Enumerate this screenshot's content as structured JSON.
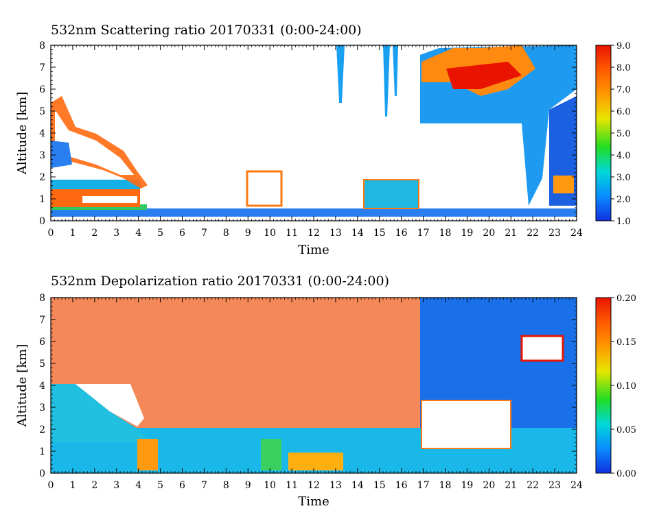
{
  "chart_data": [
    {
      "type": "heatmap",
      "title": "532nm Scattering ratio  20170331 (0:00-24:00)",
      "xlabel": "Time",
      "ylabel": "Altitude [km]",
      "xlim": [
        0,
        24
      ],
      "ylim": [
        0,
        8
      ],
      "x_ticks": [
        "0",
        "1",
        "2",
        "3",
        "4",
        "5",
        "6",
        "7",
        "8",
        "9",
        "10",
        "11",
        "12",
        "13",
        "14",
        "15",
        "16",
        "17",
        "18",
        "19",
        "20",
        "21",
        "22",
        "23",
        "24"
      ],
      "y_ticks": [
        "0",
        "1",
        "2",
        "3",
        "4",
        "5",
        "6",
        "7",
        "8"
      ],
      "colorbar": {
        "range": [
          1.0,
          9.0
        ],
        "ticks": [
          "1.0",
          "2.0",
          "3.0",
          "4.0",
          "5.0",
          "6.0",
          "7.0",
          "8.0",
          "9.0"
        ]
      }
    },
    {
      "type": "heatmap",
      "title": "532nm Depolarization ratio  20170331 (0:00-24:00)",
      "xlabel": "Time",
      "ylabel": "Altitude [km]",
      "xlim": [
        0,
        24
      ],
      "ylim": [
        0,
        8
      ],
      "x_ticks": [
        "0",
        "1",
        "2",
        "3",
        "4",
        "5",
        "6",
        "7",
        "8",
        "9",
        "10",
        "11",
        "12",
        "13",
        "14",
        "15",
        "16",
        "17",
        "18",
        "19",
        "20",
        "21",
        "22",
        "23",
        "24"
      ],
      "y_ticks": [
        "0",
        "1",
        "2",
        "3",
        "4",
        "5",
        "6",
        "7",
        "8"
      ],
      "colorbar": {
        "range": [
          0.0,
          0.2
        ],
        "ticks": [
          "0.00",
          "0.05",
          "0.10",
          "0.15",
          "0.20"
        ]
      }
    }
  ],
  "colors": {
    "colormap": [
      "#1030e0",
      "#0a8cff",
      "#00d8d8",
      "#22dd22",
      "#e6e600",
      "#ff9900",
      "#ff5a00",
      "#e81400"
    ]
  }
}
